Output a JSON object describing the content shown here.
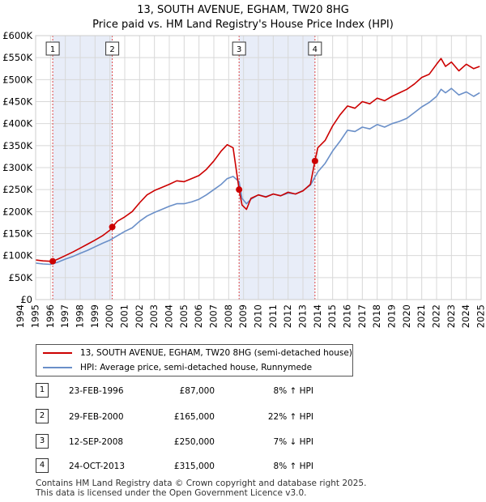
{
  "title_line1": "13, SOUTH AVENUE, EGHAM, TW20 8HG",
  "title_line2": "Price paid vs. HM Land Registry's House Price Index (HPI)",
  "colors": {
    "property": "#cc0000",
    "hpi": "#6a8fc8",
    "shade": "#e8edf8",
    "vline": "#dd4444"
  },
  "chart_data": {
    "type": "line",
    "title": "Price paid vs. HM Land Registry's House Price Index (HPI)",
    "xlim": [
      1995,
      2025
    ],
    "ylim": [
      0,
      600000
    ],
    "yticks": [
      0,
      50000,
      100000,
      150000,
      200000,
      250000,
      300000,
      350000,
      400000,
      450000,
      500000,
      550000,
      600000
    ],
    "ytick_labels": [
      "£0",
      "£50K",
      "£100K",
      "£150K",
      "£200K",
      "£250K",
      "£300K",
      "£350K",
      "£400K",
      "£450K",
      "£500K",
      "£550K",
      "£600K"
    ],
    "xticks": [
      1994,
      1995,
      1996,
      1997,
      1998,
      1999,
      2000,
      2001,
      2002,
      2003,
      2004,
      2005,
      2006,
      2007,
      2008,
      2009,
      2010,
      2011,
      2012,
      2013,
      2014,
      2015,
      2016,
      2017,
      2018,
      2019,
      2020,
      2021,
      2022,
      2023,
      2024,
      2025
    ],
    "grid": true,
    "shaded_ranges": [
      [
        1996.15,
        2000.16
      ],
      [
        2008.7,
        2013.81
      ]
    ],
    "series": [
      {
        "name": "13, SOUTH AVENUE, EGHAM, TW20 8HG (semi-detached house)",
        "x": [
          1995.0,
          1995.5,
          1996.0,
          1996.15,
          1996.5,
          1997.0,
          1997.5,
          1998.0,
          1998.5,
          1999.0,
          1999.5,
          2000.0,
          2000.16,
          2000.5,
          2001.0,
          2001.5,
          2002.0,
          2002.5,
          2003.0,
          2003.5,
          2004.0,
          2004.5,
          2005.0,
          2005.5,
          2006.0,
          2006.5,
          2007.0,
          2007.5,
          2007.9,
          2008.3,
          2008.7,
          2008.9,
          2009.2,
          2009.5,
          2010.0,
          2010.5,
          2011.0,
          2011.5,
          2012.0,
          2012.5,
          2013.0,
          2013.5,
          2013.81,
          2014.0,
          2014.5,
          2015.0,
          2015.5,
          2016.0,
          2016.5,
          2017.0,
          2017.5,
          2018.0,
          2018.5,
          2019.0,
          2019.5,
          2020.0,
          2020.5,
          2021.0,
          2021.5,
          2022.0,
          2022.3,
          2022.6,
          2023.0,
          2023.5,
          2024.0,
          2024.5,
          2024.9
        ],
        "values": [
          90000,
          88000,
          87000,
          87000,
          92000,
          100000,
          108000,
          117000,
          126000,
          135000,
          145000,
          158000,
          165000,
          178000,
          188000,
          200000,
          220000,
          238000,
          248000,
          255000,
          262000,
          270000,
          268000,
          275000,
          282000,
          296000,
          315000,
          338000,
          352000,
          345000,
          250000,
          215000,
          205000,
          230000,
          238000,
          233000,
          240000,
          236000,
          244000,
          240000,
          247000,
          262000,
          315000,
          345000,
          362000,
          395000,
          420000,
          440000,
          435000,
          450000,
          445000,
          458000,
          452000,
          462000,
          470000,
          478000,
          490000,
          505000,
          512000,
          535000,
          548000,
          530000,
          540000,
          520000,
          535000,
          525000,
          530000
        ]
      },
      {
        "name": "HPI: Average price, semi-detached house, Runnymede",
        "x": [
          1995.0,
          1995.5,
          1996.0,
          1996.5,
          1997.0,
          1997.5,
          1998.0,
          1998.5,
          1999.0,
          1999.5,
          2000.0,
          2000.5,
          2001.0,
          2001.5,
          2002.0,
          2002.5,
          2003.0,
          2003.5,
          2004.0,
          2004.5,
          2005.0,
          2005.5,
          2006.0,
          2006.5,
          2007.0,
          2007.5,
          2007.9,
          2008.3,
          2008.7,
          2008.9,
          2009.2,
          2009.5,
          2010.0,
          2010.5,
          2011.0,
          2011.5,
          2012.0,
          2012.5,
          2013.0,
          2013.5,
          2014.0,
          2014.5,
          2015.0,
          2015.5,
          2016.0,
          2016.5,
          2017.0,
          2017.5,
          2018.0,
          2018.5,
          2019.0,
          2019.5,
          2020.0,
          2020.5,
          2021.0,
          2021.5,
          2022.0,
          2022.3,
          2022.6,
          2023.0,
          2023.5,
          2024.0,
          2024.5,
          2024.9
        ],
        "values": [
          83000,
          81000,
          80000,
          85000,
          92000,
          98000,
          105000,
          112000,
          120000,
          128000,
          135000,
          145000,
          155000,
          163000,
          178000,
          190000,
          198000,
          205000,
          212000,
          218000,
          218000,
          222000,
          228000,
          238000,
          250000,
          262000,
          275000,
          280000,
          268000,
          230000,
          218000,
          228000,
          238000,
          234000,
          240000,
          236000,
          242000,
          240000,
          248000,
          260000,
          290000,
          310000,
          338000,
          360000,
          385000,
          382000,
          392000,
          388000,
          398000,
          392000,
          400000,
          405000,
          412000,
          425000,
          438000,
          448000,
          462000,
          478000,
          470000,
          480000,
          465000,
          472000,
          462000,
          470000
        ]
      }
    ],
    "sales": [
      {
        "label": "1",
        "x": 1996.15,
        "y": 87000
      },
      {
        "label": "2",
        "x": 2000.16,
        "y": 165000
      },
      {
        "label": "3",
        "x": 2008.7,
        "y": 250000
      },
      {
        "label": "4",
        "x": 2013.81,
        "y": 315000
      }
    ]
  },
  "legend": {
    "property_label": "13, SOUTH AVENUE, EGHAM, TW20 8HG (semi-detached house)",
    "hpi_label": "HPI: Average price, semi-detached house, Runnymede"
  },
  "sales_table": [
    {
      "num": "1",
      "date": "23-FEB-1996",
      "price": "£87,000",
      "hpi": "8% ↑ HPI"
    },
    {
      "num": "2",
      "date": "29-FEB-2000",
      "price": "£165,000",
      "hpi": "22% ↑ HPI"
    },
    {
      "num": "3",
      "date": "12-SEP-2008",
      "price": "£250,000",
      "hpi": "7% ↓ HPI"
    },
    {
      "num": "4",
      "date": "24-OCT-2013",
      "price": "£315,000",
      "hpi": "8% ↑ HPI"
    }
  ],
  "footer_line1": "Contains HM Land Registry data © Crown copyright and database right 2025.",
  "footer_line2": "This data is licensed under the Open Government Licence v3.0."
}
